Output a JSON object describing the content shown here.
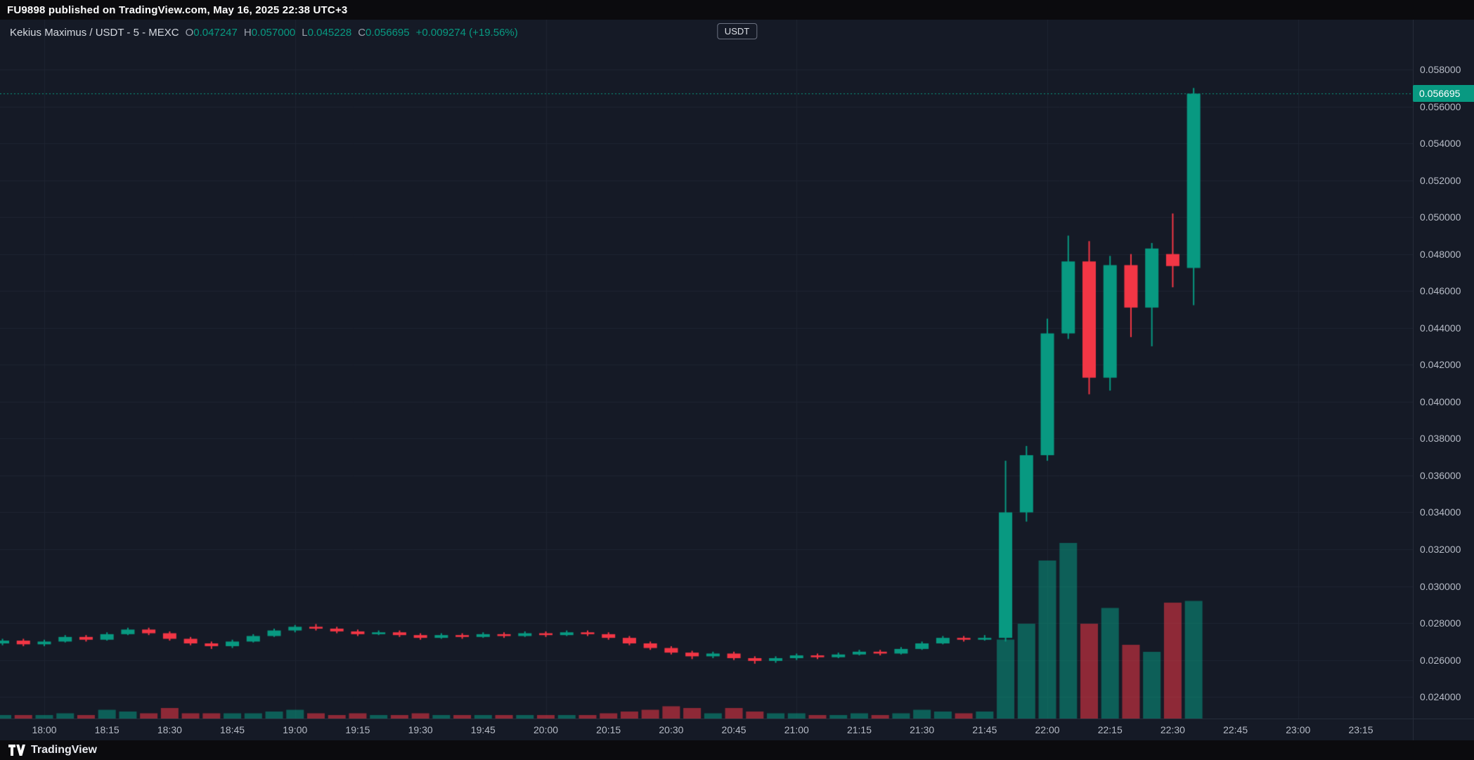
{
  "top_bar": {
    "publish_note": "FU9898 published on TradingView.com, May 16, 2025 22:38 UTC+3"
  },
  "legend": {
    "symbol_title": "Kekius Maximus / USDT - 5 - MEXC",
    "ohlc": {
      "o_label": "O",
      "o": "0.047247",
      "h_label": "H",
      "h": "0.057000",
      "l_label": "L",
      "l": "0.045228",
      "c_label": "C",
      "c": "0.056695"
    },
    "change": "+0.009274 (+19.56%)"
  },
  "price_scale": {
    "unit_button": "USDT",
    "last_price_label": "0.056695",
    "ticks": [
      "0.058000",
      "0.056000",
      "0.054000",
      "0.052000",
      "0.050000",
      "0.048000",
      "0.046000",
      "0.044000",
      "0.042000",
      "0.040000",
      "0.038000",
      "0.036000",
      "0.034000",
      "0.032000",
      "0.030000",
      "0.028000",
      "0.026000",
      "0.024000"
    ]
  },
  "time_scale": {
    "ticks": [
      "18:00",
      "18:15",
      "18:30",
      "18:45",
      "19:00",
      "19:15",
      "19:30",
      "19:45",
      "20:00",
      "20:15",
      "20:30",
      "20:45",
      "21:00",
      "21:15",
      "21:30",
      "21:45",
      "22:00",
      "22:15",
      "22:30",
      "22:45",
      "23:00",
      "23:15"
    ]
  },
  "footer": {
    "brand": "TradingView"
  },
  "colors": {
    "background": "#151a26",
    "bar_background": "#0b0b0e",
    "up": "#089981",
    "down": "#f23645",
    "volume_up": "rgba(8,153,129,0.55)",
    "volume_down": "rgba(242,54,69,0.55)",
    "grid": "#1e2432",
    "axis_text": "#b6bbc6",
    "last_price_line": "#089981"
  },
  "chart_data": {
    "type": "candlestick",
    "title": "Kekius Maximus / USDT - 5 - MEXC",
    "symbol": "Kekius Maximus / USDT",
    "interval": "5",
    "exchange": "MEXC",
    "last_price": 0.056695,
    "ylim": [
      0.0228,
      0.0607
    ],
    "price_tick_step": 0.002,
    "grid": "on",
    "volume_scale": "relative (max=100)",
    "columns": [
      "time",
      "open",
      "high",
      "low",
      "close",
      "volume"
    ],
    "candles": [
      [
        "17:50",
        0.0269,
        0.02715,
        0.0268,
        0.02705,
        2
      ],
      [
        "17:55",
        0.02705,
        0.02715,
        0.02675,
        0.02685,
        2
      ],
      [
        "18:00",
        0.02685,
        0.0271,
        0.02675,
        0.027,
        2
      ],
      [
        "18:05",
        0.027,
        0.02735,
        0.02695,
        0.02725,
        3
      ],
      [
        "18:10",
        0.02725,
        0.02735,
        0.027,
        0.0271,
        2
      ],
      [
        "18:15",
        0.0271,
        0.0275,
        0.02705,
        0.0274,
        5
      ],
      [
        "18:20",
        0.0274,
        0.02775,
        0.02735,
        0.02765,
        4
      ],
      [
        "18:25",
        0.02765,
        0.02775,
        0.02735,
        0.02745,
        3
      ],
      [
        "18:30",
        0.02745,
        0.02755,
        0.02705,
        0.02715,
        6
      ],
      [
        "18:35",
        0.02715,
        0.02725,
        0.0268,
        0.0269,
        3
      ],
      [
        "18:40",
        0.0269,
        0.027,
        0.0266,
        0.02675,
        3
      ],
      [
        "18:45",
        0.02675,
        0.0271,
        0.02665,
        0.027,
        3
      ],
      [
        "18:50",
        0.027,
        0.0274,
        0.02695,
        0.0273,
        3
      ],
      [
        "18:55",
        0.0273,
        0.0277,
        0.02725,
        0.0276,
        4
      ],
      [
        "19:00",
        0.0276,
        0.0279,
        0.0275,
        0.0278,
        5
      ],
      [
        "19:05",
        0.0278,
        0.02795,
        0.0276,
        0.0277,
        3
      ],
      [
        "19:10",
        0.0277,
        0.0278,
        0.02745,
        0.02755,
        2
      ],
      [
        "19:15",
        0.02755,
        0.02765,
        0.0273,
        0.0274,
        3
      ],
      [
        "19:20",
        0.0274,
        0.0276,
        0.02735,
        0.0275,
        2
      ],
      [
        "19:25",
        0.0275,
        0.0276,
        0.02725,
        0.02735,
        2
      ],
      [
        "19:30",
        0.02735,
        0.02745,
        0.0271,
        0.0272,
        3
      ],
      [
        "19:35",
        0.0272,
        0.02745,
        0.02715,
        0.02735,
        2
      ],
      [
        "19:40",
        0.02735,
        0.02745,
        0.02715,
        0.02725,
        2
      ],
      [
        "19:45",
        0.02725,
        0.0275,
        0.0272,
        0.0274,
        2
      ],
      [
        "19:50",
        0.0274,
        0.0275,
        0.0272,
        0.0273,
        2
      ],
      [
        "19:55",
        0.0273,
        0.02755,
        0.02725,
        0.02745,
        2
      ],
      [
        "20:00",
        0.02745,
        0.02755,
        0.02725,
        0.02735,
        2
      ],
      [
        "20:05",
        0.02735,
        0.0276,
        0.0273,
        0.0275,
        2
      ],
      [
        "20:10",
        0.0275,
        0.0276,
        0.0273,
        0.0274,
        2
      ],
      [
        "20:15",
        0.0274,
        0.0275,
        0.0271,
        0.0272,
        3
      ],
      [
        "20:20",
        0.0272,
        0.0273,
        0.0268,
        0.0269,
        4
      ],
      [
        "20:25",
        0.0269,
        0.027,
        0.02655,
        0.02665,
        5
      ],
      [
        "20:30",
        0.02665,
        0.02675,
        0.0263,
        0.0264,
        7
      ],
      [
        "20:35",
        0.0264,
        0.0265,
        0.02605,
        0.0262,
        6
      ],
      [
        "20:40",
        0.0262,
        0.02645,
        0.0261,
        0.02635,
        3
      ],
      [
        "20:45",
        0.02635,
        0.02645,
        0.026,
        0.0261,
        6
      ],
      [
        "20:50",
        0.0261,
        0.0262,
        0.0258,
        0.02595,
        4
      ],
      [
        "20:55",
        0.02595,
        0.0262,
        0.02585,
        0.0261,
        3
      ],
      [
        "21:00",
        0.0261,
        0.02635,
        0.026,
        0.02625,
        3
      ],
      [
        "21:05",
        0.02625,
        0.02635,
        0.02605,
        0.02615,
        2
      ],
      [
        "21:10",
        0.02615,
        0.0264,
        0.0261,
        0.0263,
        2
      ],
      [
        "21:15",
        0.0263,
        0.02655,
        0.02625,
        0.02645,
        3
      ],
      [
        "21:20",
        0.02645,
        0.02655,
        0.02625,
        0.02635,
        2
      ],
      [
        "21:25",
        0.02635,
        0.0267,
        0.0263,
        0.0266,
        3
      ],
      [
        "21:30",
        0.0266,
        0.027,
        0.02655,
        0.0269,
        5
      ],
      [
        "21:35",
        0.0269,
        0.0273,
        0.02685,
        0.0272,
        4
      ],
      [
        "21:40",
        0.0272,
        0.0273,
        0.027,
        0.0271,
        3
      ],
      [
        "21:45",
        0.0271,
        0.02735,
        0.02705,
        0.0272,
        4
      ],
      [
        "21:50",
        0.0272,
        0.0368,
        0.027,
        0.034,
        45
      ],
      [
        "21:55",
        0.034,
        0.0376,
        0.0335,
        0.0371,
        54
      ],
      [
        "22:00",
        0.0371,
        0.0445,
        0.0368,
        0.0437,
        90
      ],
      [
        "22:05",
        0.0437,
        0.049,
        0.0434,
        0.0476,
        100
      ],
      [
        "22:10",
        0.0476,
        0.0487,
        0.0404,
        0.0413,
        54
      ],
      [
        "22:15",
        0.0413,
        0.0479,
        0.0406,
        0.0474,
        63
      ],
      [
        "22:20",
        0.0474,
        0.048,
        0.0435,
        0.0451,
        42
      ],
      [
        "22:25",
        0.0451,
        0.0486,
        0.043,
        0.0483,
        38
      ],
      [
        "22:30",
        0.048,
        0.0502,
        0.0462,
        0.04735,
        66
      ],
      [
        "22:35",
        0.047247,
        0.057,
        0.045228,
        0.056695,
        67
      ]
    ]
  }
}
